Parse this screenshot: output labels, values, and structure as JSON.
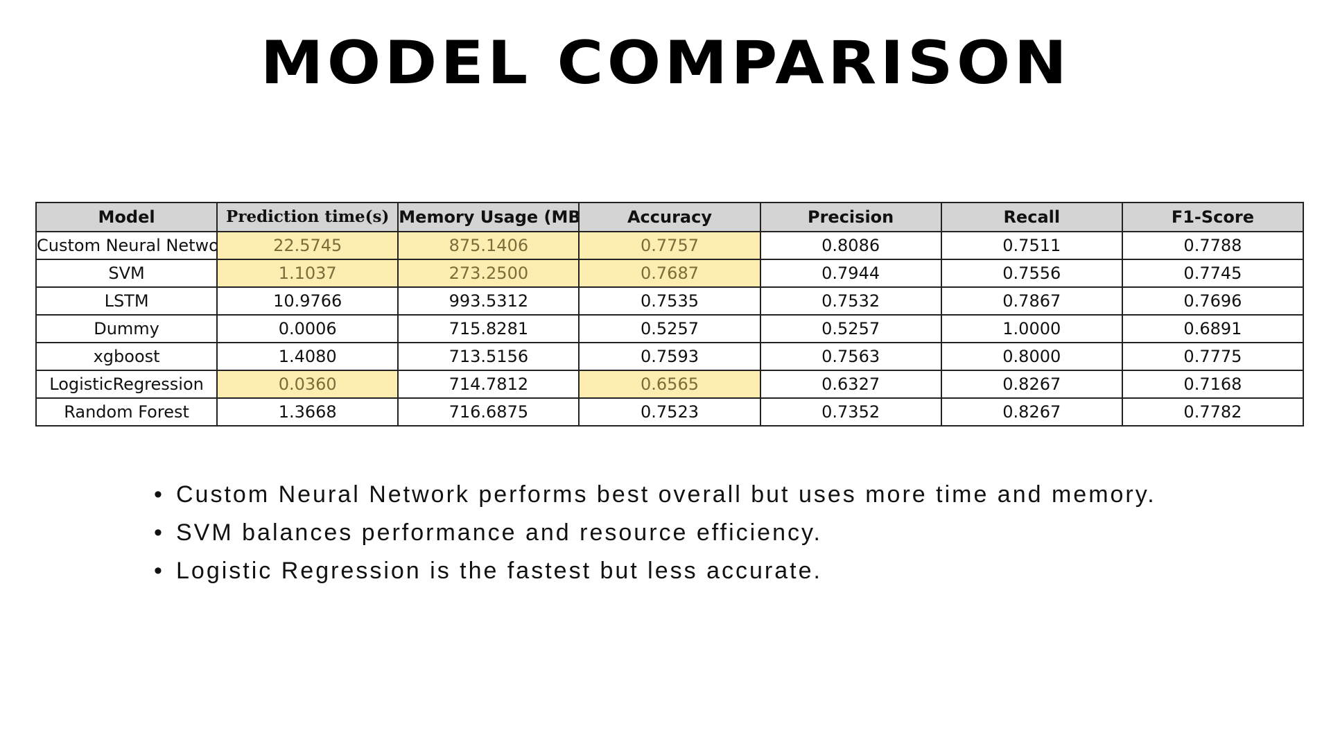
{
  "title": "MODEL COMPARISON",
  "table": {
    "columns": [
      "Model",
      "Prediction time(s)",
      "Memory Usage (MB)",
      "Accuracy",
      "Precision",
      "Recall",
      "F1-Score"
    ],
    "rows": [
      {
        "cells": [
          "Custom Neural Network",
          "22.5745",
          "875.1406",
          "0.7757",
          "0.8086",
          "0.7511",
          "0.7788"
        ],
        "highlighted": [
          1,
          2,
          3
        ]
      },
      {
        "cells": [
          "SVM",
          "1.1037",
          "273.2500",
          "0.7687",
          "0.7944",
          "0.7556",
          "0.7745"
        ],
        "highlighted": [
          1,
          2,
          3
        ]
      },
      {
        "cells": [
          "LSTM",
          "10.9766",
          "993.5312",
          "0.7535",
          "0.7532",
          "0.7867",
          "0.7696"
        ],
        "highlighted": []
      },
      {
        "cells": [
          "Dummy",
          "0.0006",
          "715.8281",
          "0.5257",
          "0.5257",
          "1.0000",
          "0.6891"
        ],
        "highlighted": []
      },
      {
        "cells": [
          "xgboost",
          "1.4080",
          "713.5156",
          "0.7593",
          "0.7563",
          "0.8000",
          "0.7775"
        ],
        "highlighted": []
      },
      {
        "cells": [
          "LogisticRegression",
          "0.0360",
          "714.7812",
          "0.6565",
          "0.6327",
          "0.8267",
          "0.7168"
        ],
        "highlighted": [
          1,
          3
        ]
      },
      {
        "cells": [
          "Random Forest",
          "1.3668",
          "716.6875",
          "0.7523",
          "0.7352",
          "0.8267",
          "0.7782"
        ],
        "highlighted": []
      }
    ],
    "highlight_color": "#fdedb0",
    "header_color": "#d4d4d4"
  },
  "notes": [
    "Custom Neural Network performs best overall but uses more time and memory.",
    "SVM balances performance and resource efficiency.",
    "Logistic Regression is the fastest but less accurate."
  ],
  "bullet_glyph": "•"
}
